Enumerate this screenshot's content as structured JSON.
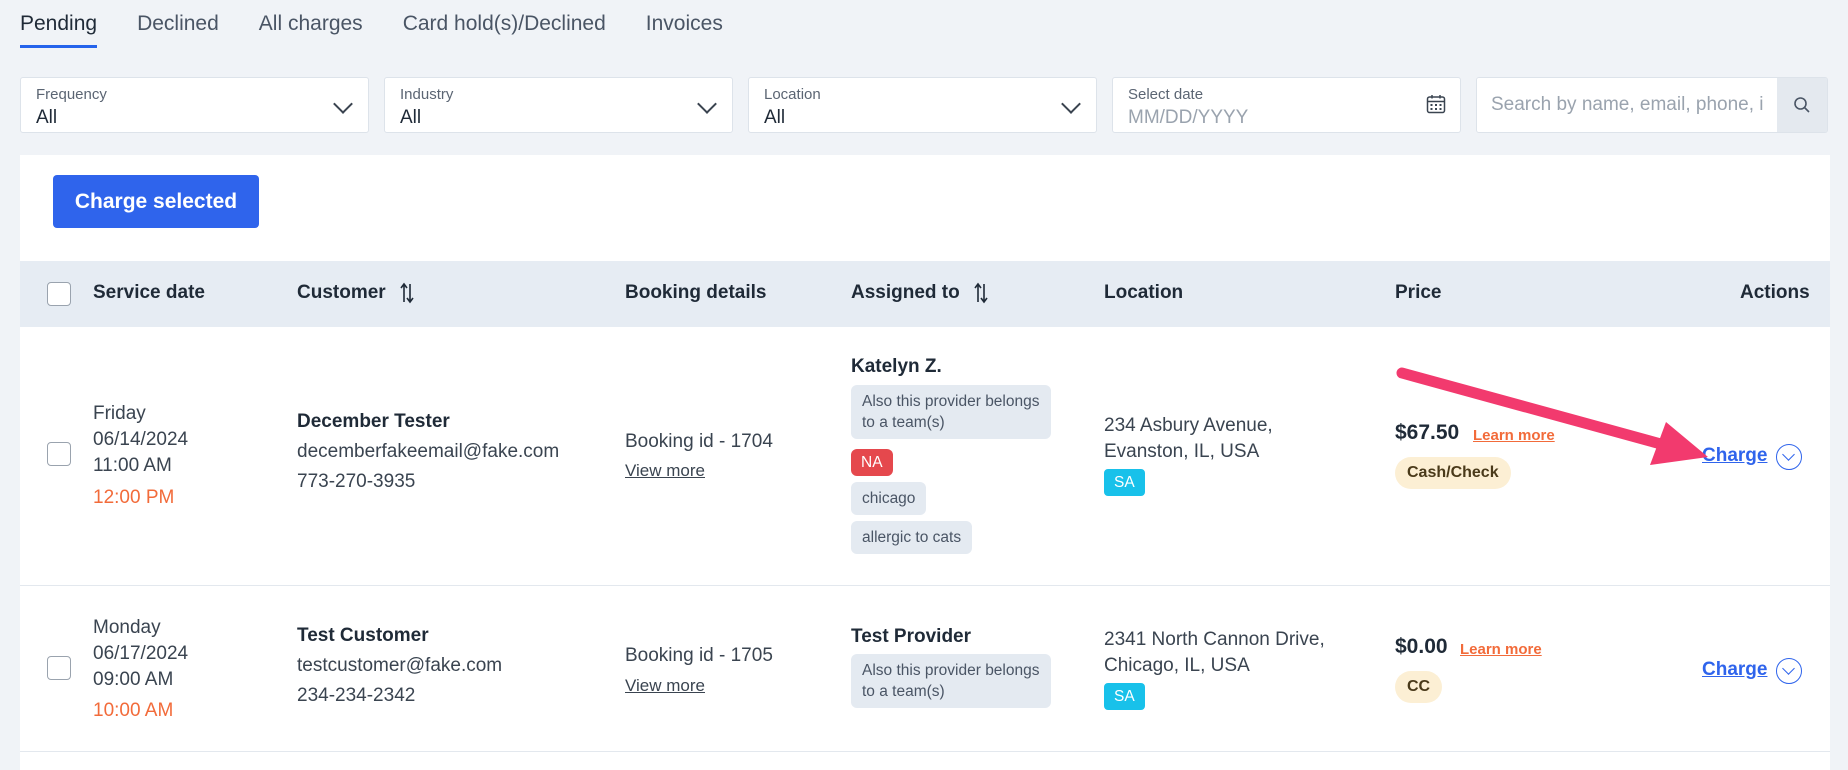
{
  "tabs": [
    {
      "label": "Pending",
      "active": true
    },
    {
      "label": "Declined"
    },
    {
      "label": "All charges"
    },
    {
      "label": "Card hold(s)/Declined"
    },
    {
      "label": "Invoices"
    }
  ],
  "filters": {
    "frequency": {
      "label": "Frequency",
      "value": "All"
    },
    "industry": {
      "label": "Industry",
      "value": "All"
    },
    "location": {
      "label": "Location",
      "value": "All"
    },
    "date": {
      "label": "Select date",
      "placeholder": "MM/DD/YYYY"
    },
    "search": {
      "placeholder": "Search by name, email, phone, id o"
    }
  },
  "toolbar": {
    "charge_selected": "Charge selected"
  },
  "table": {
    "headers": {
      "service_date": "Service date",
      "customer": "Customer",
      "booking_details": "Booking details",
      "assigned_to": "Assigned to",
      "location": "Location",
      "price": "Price",
      "actions": "Actions"
    },
    "rows": [
      {
        "day": "Friday",
        "date": "06/14/2024",
        "start": "11:00 AM",
        "end": "12:00 PM",
        "customer_name": "December Tester",
        "customer_email": "decemberfakeemail@fake.com",
        "customer_phone": "773-270-3935",
        "booking_id": "Booking id - 1704",
        "view_more": "View more",
        "provider": "Katelyn Z.",
        "team_note": "Also this provider belongs to a team(s)",
        "tags": [
          "NA",
          "chicago",
          "allergic to cats"
        ],
        "address_line1": "234 Asbury Avenue,",
        "address_line2": "Evanston, IL, USA",
        "location_badge": "SA",
        "price": "$67.50",
        "learn_more": "Learn more",
        "payment_method": "Cash/Check",
        "action": "Charge"
      },
      {
        "day": "Monday",
        "date": "06/17/2024",
        "start": "09:00 AM",
        "end": "10:00 AM",
        "customer_name": "Test Customer",
        "customer_email": "testcustomer@fake.com",
        "customer_phone": "234-234-2342",
        "booking_id": "Booking id - 1705",
        "view_more": "View more",
        "provider": "Test Provider",
        "team_note": "Also this provider belongs to a team(s)",
        "address_line1": "2341 North Cannon Drive,",
        "address_line2": "Chicago, IL, USA",
        "location_badge": "SA",
        "price": "$0.00",
        "learn_more": "Learn more",
        "payment_method": "CC",
        "action": "Charge"
      }
    ]
  },
  "colors": {
    "primary": "#2f64ec",
    "annotation_arrow": "#f23a6e",
    "time_end": "#f26b3a",
    "badge_na": "#e5484d",
    "badge_sa": "#18c1ea"
  }
}
